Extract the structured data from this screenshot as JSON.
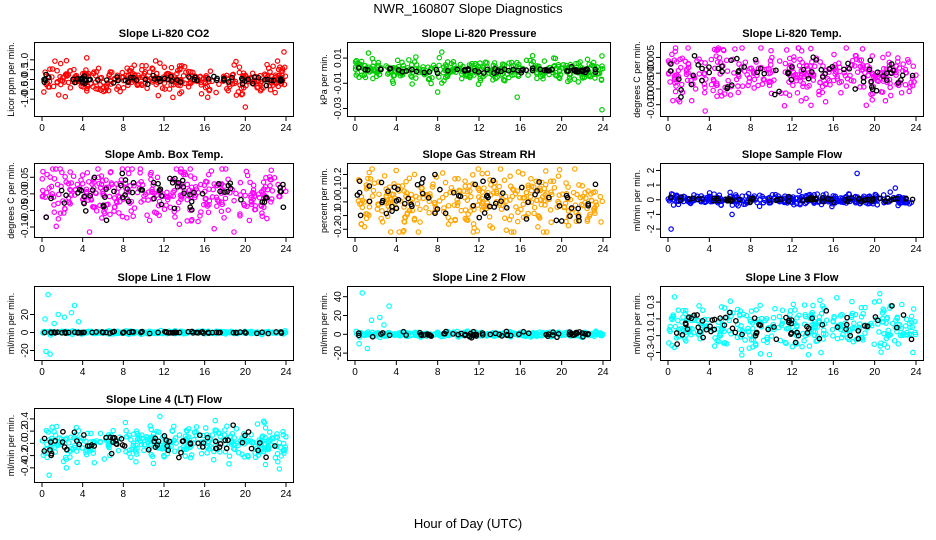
{
  "title": "NWR_160807  Slope Diagnostics",
  "xlabel": "Hour of Day (UTC)",
  "chart_data": [
    {
      "type": "scatter",
      "title": "Slope Li-820 CO2",
      "ylabel": "Licor ppm per min.",
      "color": "#ff0000",
      "xlim": [
        0,
        24
      ],
      "xticks": [
        0,
        4,
        8,
        12,
        16,
        20,
        24
      ],
      "ylim": [
        -1.6,
        1.6
      ],
      "yticks": [
        -1.0,
        -0.5,
        0.0,
        0.5,
        1.0
      ],
      "ytick_labels": [
        "-1.0",
        "-0.5",
        "0.0",
        "0.5",
        "1.0"
      ],
      "spread": 0.35,
      "outliers": [
        [
          20,
          -1.4
        ],
        [
          23.8,
          1.4
        ],
        [
          4.4,
          1.1
        ],
        [
          16.3,
          -0.9
        ]
      ],
      "black_spread": 0.12
    },
    {
      "type": "scatter",
      "title": "Slope Li-820 Pressure",
      "ylabel": "kPa per min.",
      "color": "#00cc00",
      "xlim": [
        0,
        24
      ],
      "xticks": [
        0,
        4,
        8,
        12,
        16,
        20,
        24
      ],
      "ylim": [
        -0.032,
        0.018
      ],
      "yticks": [
        -0.03,
        -0.01,
        0.01
      ],
      "ytick_labels": [
        "-0.03",
        "-0.01",
        "0.01"
      ],
      "spread": 0.004,
      "outliers": [
        [
          8,
          -0.017
        ],
        [
          15.7,
          -0.021
        ],
        [
          23.9,
          -0.031
        ],
        [
          1.3,
          0.014
        ],
        [
          3.7,
          -0.01
        ]
      ],
      "black_spread": 0.001
    },
    {
      "type": "scatter",
      "title": "Slope Li-820 Temp.",
      "ylabel": "degrees C per min.",
      "color": "#ff00ff",
      "xlim": [
        0,
        24
      ],
      "xticks": [
        0,
        4,
        8,
        12,
        16,
        20,
        24
      ],
      "ylim": [
        -0.012,
        0.008
      ],
      "yticks": [
        -0.01,
        -0.005,
        0.0,
        0.005
      ],
      "ytick_labels": [
        "-0.010",
        "-0.005",
        "0.000",
        "0.005"
      ],
      "spread": 0.004,
      "outliers": [
        [
          3.6,
          -0.012
        ],
        [
          4.5,
          0.0075
        ]
      ],
      "black_spread": 0.003
    },
    {
      "type": "scatter",
      "title": "Slope Amb. Box Temp.",
      "ylabel": "degrees C per min.",
      "color": "#ff00ff",
      "xlim": [
        0,
        24
      ],
      "xticks": [
        0,
        4,
        8,
        12,
        16,
        20,
        24
      ],
      "ylim": [
        -0.115,
        0.075
      ],
      "yticks": [
        -0.1,
        -0.05,
        0.0,
        0.05
      ],
      "ytick_labels": [
        "-0.10",
        "-0.05",
        "0.00",
        "0.05"
      ],
      "spread": 0.045,
      "outliers": [],
      "black_spread": 0.03
    },
    {
      "type": "scatter",
      "title": "Slope Gas Stream RH",
      "ylabel": "percent per min.",
      "color": "#ffa500",
      "xlim": [
        0,
        24
      ],
      "xticks": [
        0,
        4,
        8,
        12,
        16,
        20,
        24
      ],
      "ylim": [
        -0.22,
        0.24
      ],
      "yticks": [
        -0.2,
        -0.1,
        0.0,
        0.1,
        0.2
      ],
      "ytick_labels": [
        "-0.2",
        "-0.1",
        "0.0",
        "0.1",
        "0.2"
      ],
      "spread": 0.1,
      "outliers": [],
      "black_spread": 0.08
    },
    {
      "type": "scatter",
      "title": "Slope Sample Flow",
      "ylabel": "ml/min per min.",
      "color": "#0000ff",
      "xlim": [
        0,
        24
      ],
      "xticks": [
        0,
        4,
        8,
        12,
        16,
        20,
        24
      ],
      "ylim": [
        -2.2,
        2.1
      ],
      "yticks": [
        -2,
        -1,
        0,
        1,
        2
      ],
      "ytick_labels": [
        "-2",
        "-1",
        "0",
        "1",
        "2"
      ],
      "spread": 0.18,
      "outliers": [
        [
          0.3,
          -2
        ],
        [
          18.3,
          1.8
        ],
        [
          6.2,
          -1
        ],
        [
          22,
          0.8
        ]
      ],
      "black_spread": 0.08
    },
    {
      "type": "scatter",
      "title": "Slope Line 1 Flow",
      "ylabel": "ml/min per min.",
      "color": "#00ffff",
      "xlim": [
        0,
        24
      ],
      "xticks": [
        0,
        4,
        8,
        12,
        16,
        20,
        24
      ],
      "ylim": [
        -25,
        45
      ],
      "yticks": [
        -20,
        0,
        20
      ],
      "ytick_labels": [
        "-20",
        "0",
        "20"
      ],
      "spread": 0.8,
      "outliers": [
        [
          0.6,
          42
        ],
        [
          0.4,
          -21
        ],
        [
          0.8,
          -24
        ],
        [
          3.2,
          30
        ],
        [
          1.6,
          20
        ],
        [
          2.2,
          17
        ],
        [
          2.9,
          22
        ],
        [
          0.3,
          15
        ],
        [
          3.6,
          12
        ],
        [
          1.2,
          10
        ]
      ],
      "black_spread": 0.5
    },
    {
      "type": "scatter",
      "title": "Slope Line 2 Flow",
      "ylabel": "ml/min per min.",
      "color": "#00ffff",
      "xlim": [
        0,
        24
      ],
      "xticks": [
        0,
        4,
        8,
        12,
        16,
        20,
        24
      ],
      "ylim": [
        -22,
        45
      ],
      "yticks": [
        -20,
        0,
        20,
        40
      ],
      "ytick_labels": [
        "-20",
        "0",
        "20",
        "40"
      ],
      "spread": 1.2,
      "outliers": [
        [
          0.7,
          44
        ],
        [
          3.3,
          30
        ],
        [
          1.6,
          15
        ],
        [
          2.4,
          18
        ],
        [
          0.4,
          -10
        ],
        [
          1.2,
          -15
        ],
        [
          2.8,
          10
        ]
      ],
      "black_spread": 1.5
    },
    {
      "type": "scatter",
      "title": "Slope Line 3 Flow",
      "ylabel": "ml/min per min.",
      "color": "#00ffff",
      "xlim": [
        0,
        24
      ],
      "xticks": [
        0,
        4,
        8,
        12,
        16,
        20,
        24
      ],
      "ylim": [
        -0.33,
        0.42
      ],
      "yticks": [
        -0.3,
        -0.1,
        0.1,
        0.3
      ],
      "ytick_labels": [
        "-0.3",
        "-0.1",
        "0.1",
        "0.3"
      ],
      "spread": 0.13,
      "outliers": [
        [
          20.5,
          0.4
        ],
        [
          23.7,
          -0.3
        ]
      ],
      "black_spread": 0.1
    },
    {
      "type": "scatter",
      "title": "Slope Line 4 (LT) Flow",
      "ylabel": "ml/min per min.",
      "color": "#00ffff",
      "xlim": [
        0,
        24
      ],
      "xticks": [
        0,
        4,
        8,
        12,
        16,
        20,
        24
      ],
      "ylim": [
        -0.55,
        0.48
      ],
      "yticks": [
        -0.4,
        -0.2,
        0.0,
        0.2,
        0.4
      ],
      "ytick_labels": [
        "-0.4",
        "-0.2",
        "0.0",
        "0.2",
        "0.4"
      ],
      "spread": 0.14,
      "outliers": [
        [
          0.7,
          -0.52
        ],
        [
          11.6,
          0.44
        ],
        [
          2.4,
          -0.4
        ],
        [
          8.2,
          0.34
        ]
      ],
      "black_spread": 0.1
    }
  ]
}
